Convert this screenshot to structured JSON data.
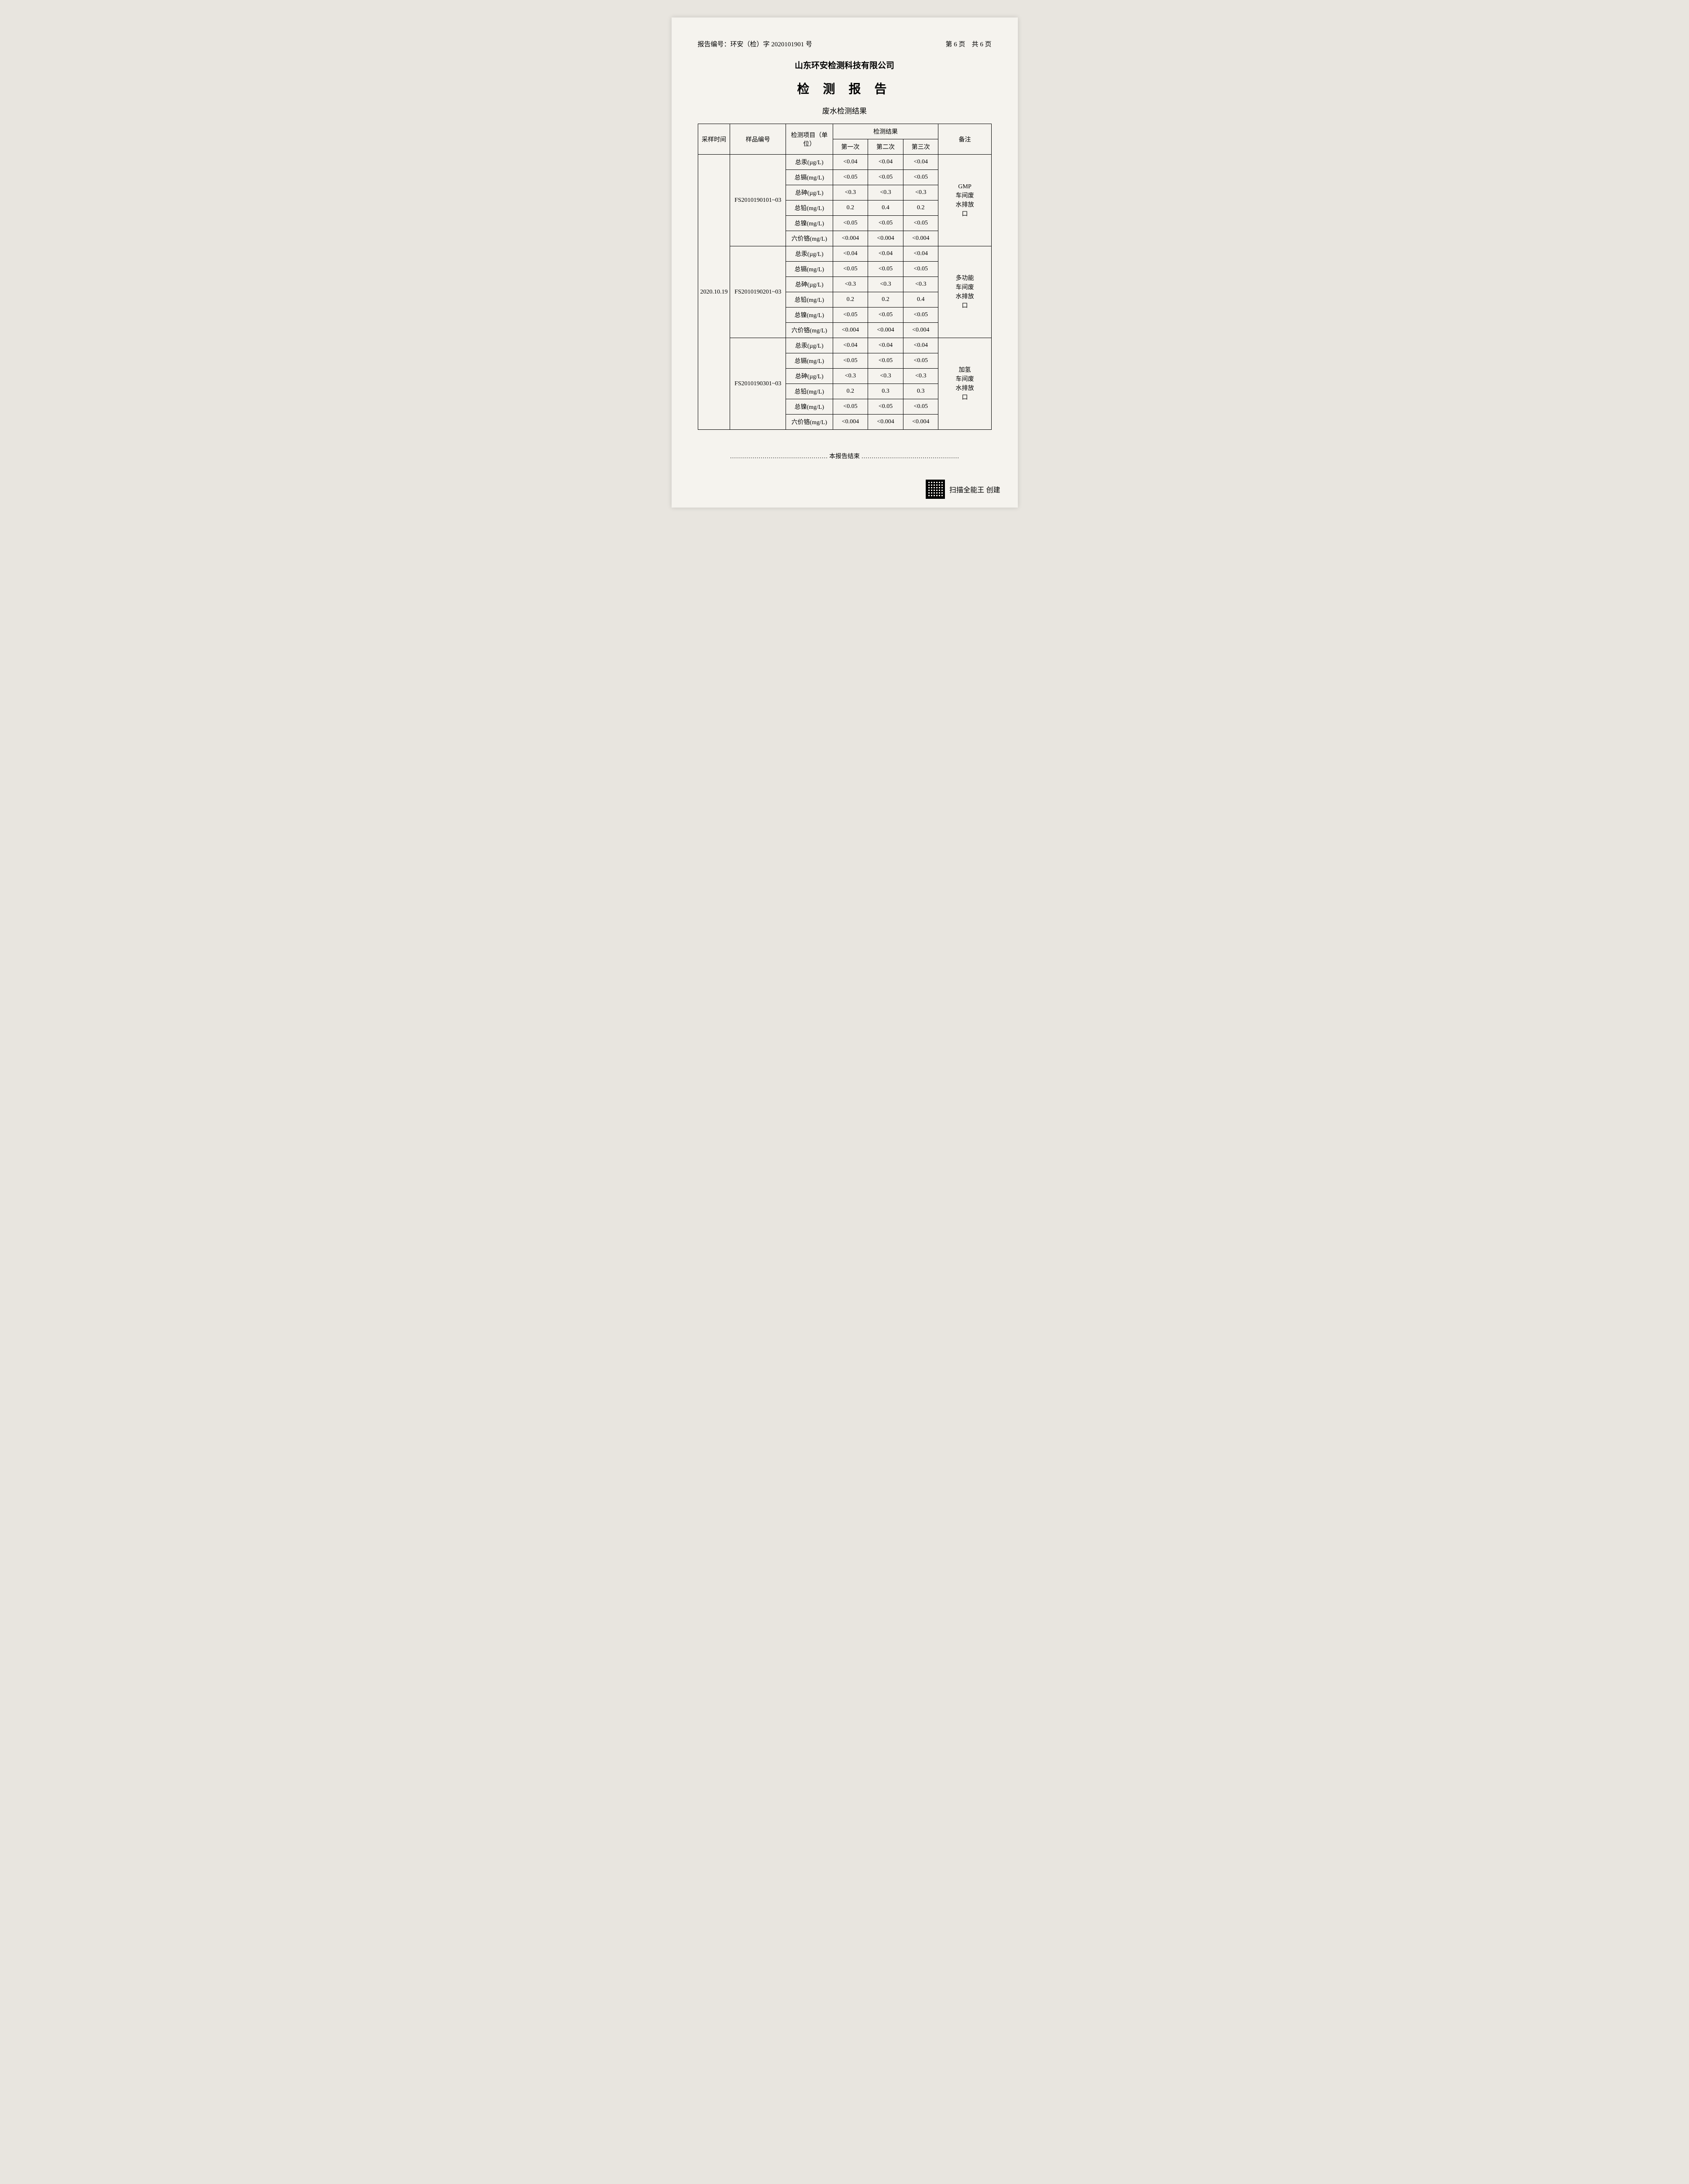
{
  "header": {
    "report_no_label": "报告编号：环安（检）字 2020101901 号",
    "page_info": "第 6 页　共 6 页"
  },
  "company": "山东环安检测科技有限公司",
  "title": "检 测 报 告",
  "subtitle": "废水检测结果",
  "columns": {
    "sample_time": "采样时间",
    "sample_no": "样品编号",
    "test_item": "检测项目（单位）",
    "test_result": "检测结果",
    "r1": "第一次",
    "r2": "第二次",
    "r3": "第三次",
    "remark": "备注"
  },
  "sample_time": "2020.10.19",
  "groups": [
    {
      "sample_no": "FS2010190101~03",
      "note": "GMP\n车间废\n水排放\n口",
      "rows": [
        {
          "item": "总汞(µg/L)",
          "v1": "<0.04",
          "v2": "<0.04",
          "v3": "<0.04"
        },
        {
          "item": "总镉(mg/L)",
          "v1": "<0.05",
          "v2": "<0.05",
          "v3": "<0.05"
        },
        {
          "item": "总砷(µg/L)",
          "v1": "<0.3",
          "v2": "<0.3",
          "v3": "<0.3"
        },
        {
          "item": "总铅(mg/L)",
          "v1": "0.2",
          "v2": "0.4",
          "v3": "0.2"
        },
        {
          "item": "总镍(mg/L)",
          "v1": "<0.05",
          "v2": "<0.05",
          "v3": "<0.05"
        },
        {
          "item": "六价铬(mg/L)",
          "v1": "<0.004",
          "v2": "<0.004",
          "v3": "<0.004"
        }
      ]
    },
    {
      "sample_no": "FS2010190201~03",
      "note": "多功能\n车间废\n水排放\n口",
      "rows": [
        {
          "item": "总汞(µg/L)",
          "v1": "<0.04",
          "v2": "<0.04",
          "v3": "<0.04"
        },
        {
          "item": "总镉(mg/L)",
          "v1": "<0.05",
          "v2": "<0.05",
          "v3": "<0.05"
        },
        {
          "item": "总砷(µg/L)",
          "v1": "<0.3",
          "v2": "<0.3",
          "v3": "<0.3"
        },
        {
          "item": "总铅(mg/L)",
          "v1": "0.2",
          "v2": "0.2",
          "v3": "0.4"
        },
        {
          "item": "总镍(mg/L)",
          "v1": "<0.05",
          "v2": "<0.05",
          "v3": "<0.05"
        },
        {
          "item": "六价铬(mg/L)",
          "v1": "<0.004",
          "v2": "<0.004",
          "v3": "<0.004"
        }
      ]
    },
    {
      "sample_no": "FS2010190301~03",
      "note": "加氢\n车间废\n水排放\n口",
      "rows": [
        {
          "item": "总汞(µg/L)",
          "v1": "<0.04",
          "v2": "<0.04",
          "v3": "<0.04"
        },
        {
          "item": "总镉(mg/L)",
          "v1": "<0.05",
          "v2": "<0.05",
          "v3": "<0.05"
        },
        {
          "item": "总砷(µg/L)",
          "v1": "<0.3",
          "v2": "<0.3",
          "v3": "<0.3"
        },
        {
          "item": "总铅(mg/L)",
          "v1": "0.2",
          "v2": "0.3",
          "v3": "0.3"
        },
        {
          "item": "总镍(mg/L)",
          "v1": "<0.05",
          "v2": "<0.05",
          "v3": "<0.05"
        },
        {
          "item": "六价铬(mg/L)",
          "v1": "<0.004",
          "v2": "<0.004",
          "v3": "<0.004"
        }
      ]
    }
  ],
  "end_text": "本报告结束",
  "footer_text": "扫描全能王  创建"
}
